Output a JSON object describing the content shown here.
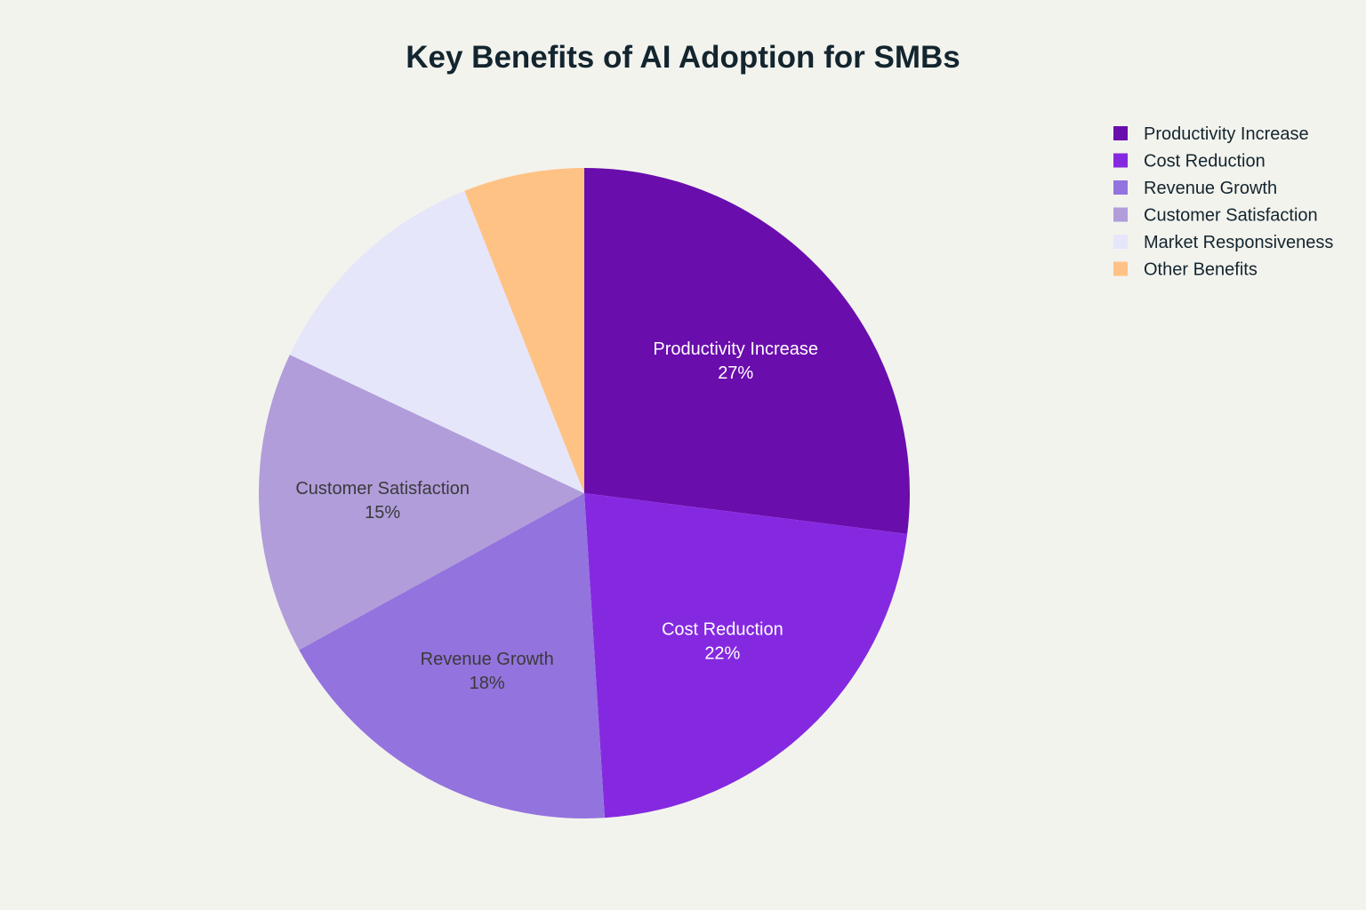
{
  "chart_data": {
    "type": "pie",
    "title": "Key Benefits of AI Adoption for SMBs",
    "categories": [
      "Productivity Increase",
      "Cost Reduction",
      "Revenue Growth",
      "Customer Satisfaction",
      "Market Responsiveness",
      "Other Benefits"
    ],
    "values": [
      27,
      22,
      18,
      15,
      12,
      6
    ],
    "unit": "%",
    "colors": [
      "#6a0dad",
      "#8529e0",
      "#9373dd",
      "#b19dda",
      "#e6e6fa",
      "#ffc285"
    ],
    "label_colors": [
      "#ffffff",
      "#ffffff",
      "#3a3a3a",
      "#3a3a3a",
      "#3a3a3a",
      "#3a3a3a"
    ],
    "data_labels_shown": [
      "Productivity Increase",
      "Cost Reduction",
      "Revenue Growth",
      "Customer Satisfaction"
    ],
    "legend": {
      "placement": "top-right",
      "entries": [
        "Productivity Increase",
        "Cost Reduction",
        "Revenue Growth",
        "Customer Satisfaction",
        "Market Responsiveness",
        "Other Benefits"
      ]
    }
  }
}
